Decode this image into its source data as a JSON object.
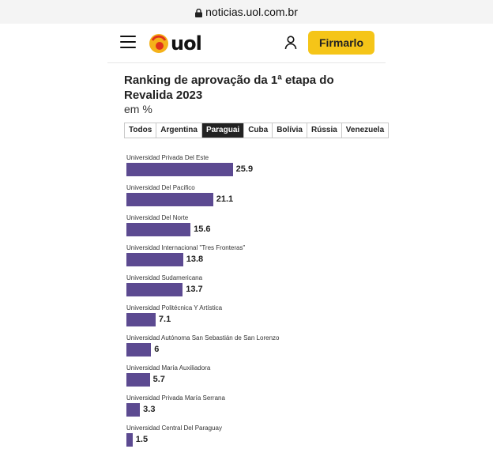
{
  "browser": {
    "url": "noticias.uol.com.br"
  },
  "header": {
    "logo_text": "uol",
    "signin_label": "Firmarlo"
  },
  "chart_section": {
    "title": "Ranking de aprovação da 1ª etapa do Revalida 2023",
    "unit": "em %",
    "tabs": [
      {
        "label": "Todos"
      },
      {
        "label": "Argentina"
      },
      {
        "label": "Paraguai"
      },
      {
        "label": "Cuba"
      },
      {
        "label": "Bolívia"
      },
      {
        "label": "Rússia"
      },
      {
        "label": "Venezuela"
      }
    ],
    "active_tab": "Paraguai"
  },
  "colors": {
    "bar": "#5c4a91",
    "signin": "#f5c518",
    "active_tab": "#222222"
  },
  "chart_data": {
    "type": "bar",
    "orientation": "horizontal",
    "title": "Ranking de aprovação da 1ª etapa do Revalida 2023",
    "unit": "em %",
    "categories": [
      "Universidad Privada Del Este",
      "Universidad Del Pacifico",
      "Universidad Del Norte",
      "Universidad Internacional \"Tres Fronteras\"",
      "Universidad Sudamericana",
      "Universidad Politécnica Y Artística",
      "Universidad Autónoma San Sebastián de San Lorenzo",
      "Universidad María Auxiliadora",
      "Universidad Privada María Serrana",
      "Universidad Central Del Paraguay"
    ],
    "values": [
      25.9,
      21.1,
      15.6,
      13.8,
      13.7,
      7.1,
      6,
      5.7,
      3.3,
      1.5
    ],
    "value_labels": [
      "25.9",
      "21.1",
      "15.6",
      "13.8",
      "13.7",
      "7.1",
      "6",
      "5.7",
      "3.3",
      "1.5"
    ]
  }
}
